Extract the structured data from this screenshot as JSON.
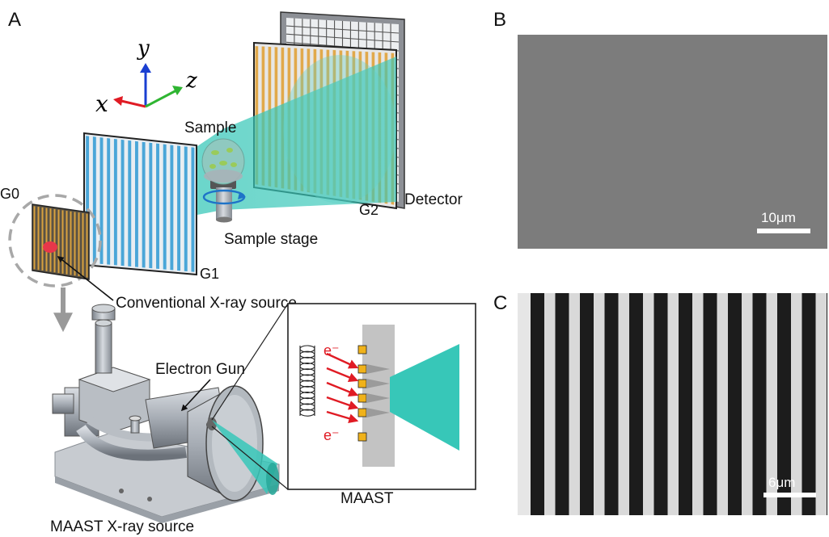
{
  "panels": {
    "a": "A",
    "b": "B",
    "c": "C"
  },
  "axes": {
    "x": "x",
    "y": "y",
    "z": "z"
  },
  "labels": {
    "sample": "Sample",
    "detector": "Detector",
    "g0": "G0",
    "g1": "G1",
    "g2": "G2",
    "sample_stage": "Sample stage",
    "conventional_source": "Conventional X-ray source",
    "electron_gun": "Electron Gun",
    "maast": "MAAST",
    "maast_source": "MAAST X-ray source",
    "electron_top": "e⁻",
    "electron_bottom": "e⁻"
  },
  "scalebars": {
    "b": "10μm",
    "c": "6μm"
  },
  "colors": {
    "beam": "#37c7b8",
    "grating_g1_lines": "#4aa6d8",
    "grating_g2_lines": "#e0a23a",
    "source_spot": "#e8364a",
    "axis_x": "#e01b24",
    "axis_y": "#1a3fd1",
    "axis_z": "#2fb532",
    "electron_arrows": "#e01b24",
    "emitter_tips": "#f0b21a"
  }
}
